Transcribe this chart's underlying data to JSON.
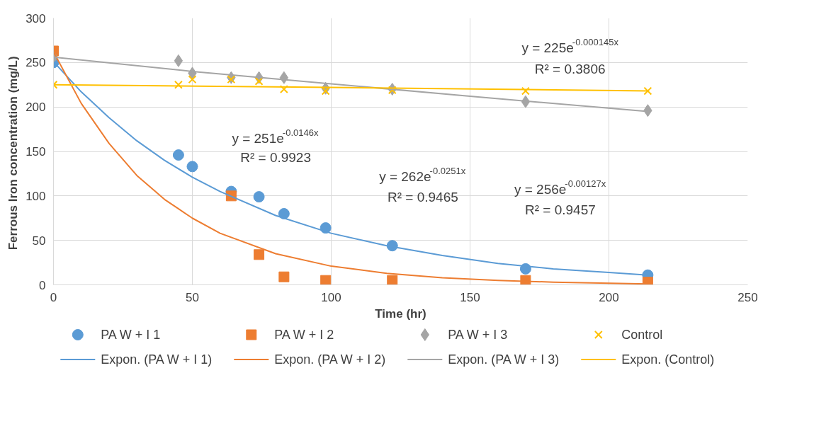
{
  "chart_data": {
    "type": "scatter",
    "xlabel": "Time (hr)",
    "ylabel": "Ferrous Iron concentration  (mg/L)",
    "x": [
      0,
      45,
      50,
      64,
      74,
      83,
      98,
      122,
      170,
      214
    ],
    "xlim": [
      0,
      250
    ],
    "xticks": [
      0,
      50,
      100,
      150,
      200,
      250
    ],
    "ylim": [
      0,
      300
    ],
    "yticks": [
      0,
      50,
      100,
      150,
      200,
      250,
      300
    ],
    "grid": true,
    "legend": "bottom",
    "series": [
      {
        "name": "PA W + I 1",
        "marker": "circle",
        "color": "#5b9bd5",
        "values": [
          250,
          146,
          133,
          105,
          99,
          80,
          64,
          44,
          18,
          11
        ]
      },
      {
        "name": "PA W + I 2",
        "marker": "square",
        "color": "#ed7d31",
        "x": [
          0,
          64,
          74,
          83,
          98,
          122,
          170,
          214
        ],
        "values": [
          263,
          100,
          34,
          9,
          5,
          5,
          5,
          3
        ]
      },
      {
        "name": "PA W + I 3",
        "marker": "diamond",
        "color": "#a5a5a5",
        "values": [
          256,
          252,
          238,
          233,
          233,
          233,
          221,
          220,
          206,
          196
        ]
      },
      {
        "name": "Control",
        "marker": "cross",
        "color": "#ffc000",
        "values": [
          225,
          225,
          231,
          231,
          229,
          220,
          218,
          219,
          218,
          218
        ]
      },
      {
        "name": "Expon. (PA W + I 1)",
        "type": "line",
        "line_style": "solid",
        "color": "#5b9bd5",
        "x": [
          0,
          10,
          20,
          30,
          40,
          50,
          60,
          80,
          100,
          120,
          140,
          160,
          180,
          200,
          214
        ],
        "values": [
          251,
          217,
          188,
          162,
          140,
          121,
          105,
          78,
          58,
          44,
          33,
          24,
          18,
          14,
          11
        ]
      },
      {
        "name": "Expon. (PA W + I 2)",
        "type": "line",
        "line_style": "solid",
        "color": "#ed7d31",
        "x": [
          0,
          10,
          20,
          30,
          40,
          50,
          60,
          80,
          100,
          120,
          140,
          160,
          180,
          214
        ],
        "values": [
          262,
          204,
          159,
          123,
          96,
          75,
          58,
          35,
          21,
          13,
          8,
          5,
          3,
          1
        ]
      },
      {
        "name": "Expon. (PA W + I 3)",
        "type": "line",
        "line_style": "solid",
        "color": "#a5a5a5",
        "x": [
          0,
          50,
          100,
          150,
          214
        ],
        "values": [
          256,
          240,
          226,
          212,
          195
        ]
      },
      {
        "name": "Expon. (Control)",
        "type": "line",
        "line_style": "solid",
        "color": "#ffc000",
        "x": [
          0,
          100,
          214
        ],
        "values": [
          225,
          222,
          218
        ]
      }
    ],
    "annotations": [
      "y = 251e$^{-0.0146x}$",
      "R² = 0.9923",
      "y = 262e$^{-0.0251x}$",
      "R² = 0.9465",
      "y = 256e$^{-0.00127x}$",
      "R² = 0.9457",
      "y = 225e$^{-0.000145x}$",
      "R² = 0.3806"
    ]
  }
}
